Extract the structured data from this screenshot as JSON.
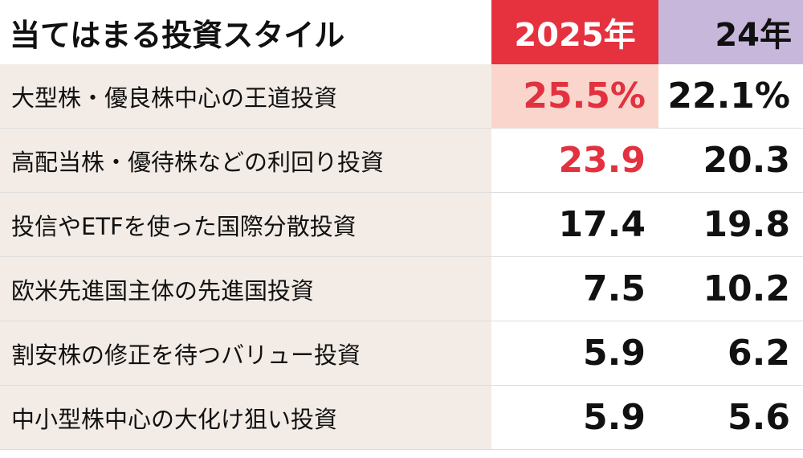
{
  "header": {
    "title": "当てはまる投資スタイル",
    "columns": [
      "2025年",
      "24年"
    ]
  },
  "table": {
    "rows": [
      [
        "大型株・優良株中心の王道投資",
        "25.5%",
        "22.1%"
      ],
      [
        "高配当株・優待株などの利回り投資",
        "23.9",
        "20.3"
      ],
      [
        "投信やETFを使った国際分散投資",
        "17.4",
        "19.8"
      ],
      [
        "欧米先進国主体の先進国投資",
        "7.5",
        "10.2"
      ],
      [
        "割安株の修正を待つバリュー投資",
        "5.9",
        "6.2"
      ],
      [
        "中小型株中心の大化け狙い投資",
        "5.9",
        "5.6"
      ]
    ]
  }
}
